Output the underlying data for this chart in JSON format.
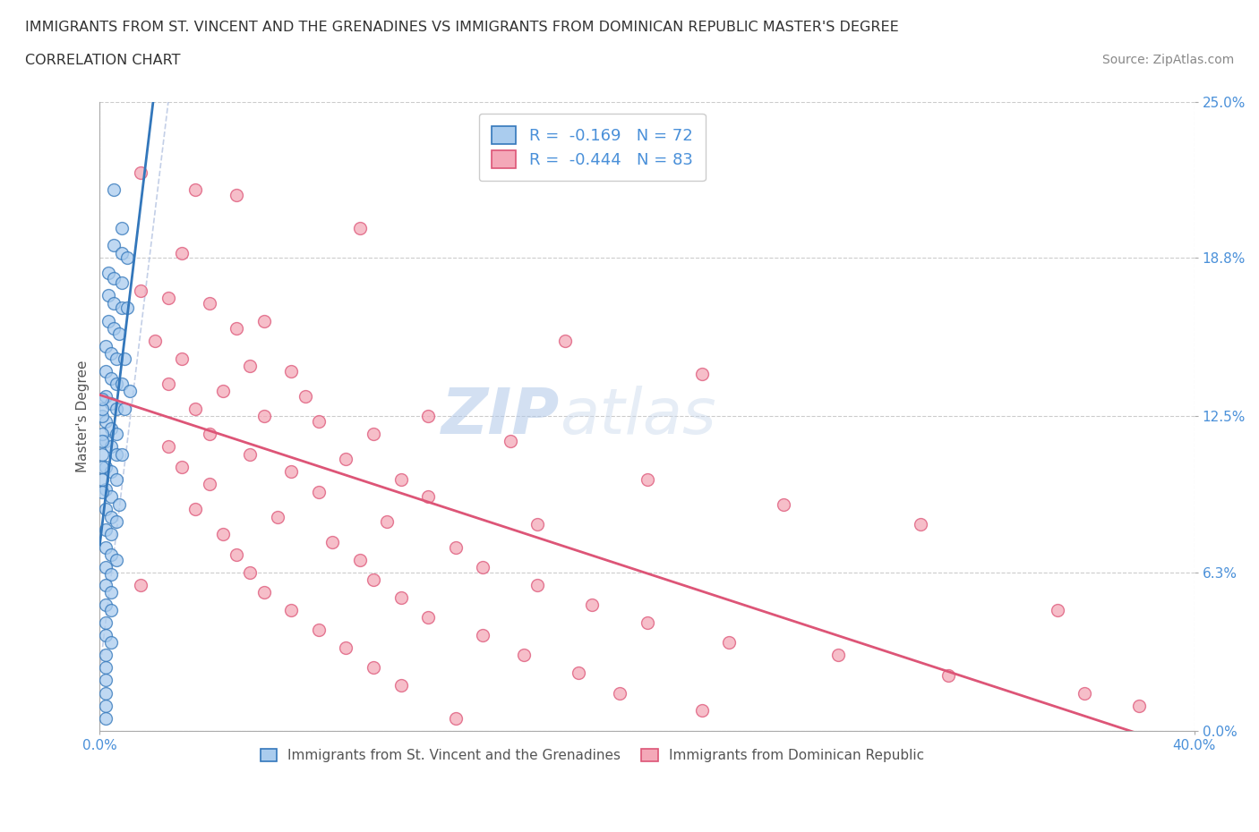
{
  "title_line1": "IMMIGRANTS FROM ST. VINCENT AND THE GRENADINES VS IMMIGRANTS FROM DOMINICAN REPUBLIC MASTER'S DEGREE",
  "title_line2": "CORRELATION CHART",
  "source_text": "Source: ZipAtlas.com",
  "ylabel": "Master's Degree",
  "xlim": [
    0.0,
    0.4
  ],
  "ylim": [
    0.0,
    0.25
  ],
  "xtick_positions": [
    0.0,
    0.4
  ],
  "xticklabels": [
    "0.0%",
    "40.0%"
  ],
  "ytick_values": [
    0.0,
    0.063,
    0.125,
    0.188,
    0.25
  ],
  "ytick_labels": [
    "0.0%",
    "6.3%",
    "12.5%",
    "18.8%",
    "25.0%"
  ],
  "blue_R": -0.169,
  "blue_N": 72,
  "pink_R": -0.444,
  "pink_N": 83,
  "blue_color": "#aaccee",
  "pink_color": "#f4a8b8",
  "blue_line_color": "#3377bb",
  "pink_line_color": "#dd5577",
  "blue_scatter": [
    [
      0.005,
      0.215
    ],
    [
      0.008,
      0.2
    ],
    [
      0.005,
      0.193
    ],
    [
      0.008,
      0.19
    ],
    [
      0.01,
      0.188
    ],
    [
      0.003,
      0.182
    ],
    [
      0.005,
      0.18
    ],
    [
      0.008,
      0.178
    ],
    [
      0.003,
      0.173
    ],
    [
      0.005,
      0.17
    ],
    [
      0.008,
      0.168
    ],
    [
      0.01,
      0.168
    ],
    [
      0.003,
      0.163
    ],
    [
      0.005,
      0.16
    ],
    [
      0.007,
      0.158
    ],
    [
      0.002,
      0.153
    ],
    [
      0.004,
      0.15
    ],
    [
      0.006,
      0.148
    ],
    [
      0.009,
      0.148
    ],
    [
      0.002,
      0.143
    ],
    [
      0.004,
      0.14
    ],
    [
      0.006,
      0.138
    ],
    [
      0.008,
      0.138
    ],
    [
      0.011,
      0.135
    ],
    [
      0.002,
      0.133
    ],
    [
      0.004,
      0.13
    ],
    [
      0.006,
      0.128
    ],
    [
      0.009,
      0.128
    ],
    [
      0.002,
      0.123
    ],
    [
      0.004,
      0.12
    ],
    [
      0.006,
      0.118
    ],
    [
      0.002,
      0.115
    ],
    [
      0.004,
      0.113
    ],
    [
      0.006,
      0.11
    ],
    [
      0.008,
      0.11
    ],
    [
      0.002,
      0.105
    ],
    [
      0.004,
      0.103
    ],
    [
      0.006,
      0.1
    ],
    [
      0.002,
      0.096
    ],
    [
      0.004,
      0.093
    ],
    [
      0.007,
      0.09
    ],
    [
      0.002,
      0.088
    ],
    [
      0.004,
      0.085
    ],
    [
      0.006,
      0.083
    ],
    [
      0.002,
      0.08
    ],
    [
      0.004,
      0.078
    ],
    [
      0.002,
      0.073
    ],
    [
      0.004,
      0.07
    ],
    [
      0.006,
      0.068
    ],
    [
      0.002,
      0.065
    ],
    [
      0.004,
      0.062
    ],
    [
      0.002,
      0.058
    ],
    [
      0.004,
      0.055
    ],
    [
      0.002,
      0.05
    ],
    [
      0.004,
      0.048
    ],
    [
      0.002,
      0.043
    ],
    [
      0.002,
      0.038
    ],
    [
      0.004,
      0.035
    ],
    [
      0.002,
      0.03
    ],
    [
      0.002,
      0.025
    ],
    [
      0.002,
      0.02
    ],
    [
      0.002,
      0.015
    ],
    [
      0.002,
      0.01
    ],
    [
      0.002,
      0.005
    ],
    [
      0.001,
      0.125
    ],
    [
      0.001,
      0.128
    ],
    [
      0.001,
      0.132
    ],
    [
      0.001,
      0.118
    ],
    [
      0.001,
      0.115
    ],
    [
      0.001,
      0.11
    ],
    [
      0.001,
      0.105
    ],
    [
      0.001,
      0.1
    ],
    [
      0.001,
      0.095
    ]
  ],
  "pink_scatter": [
    [
      0.015,
      0.222
    ],
    [
      0.035,
      0.215
    ],
    [
      0.05,
      0.213
    ],
    [
      0.095,
      0.2
    ],
    [
      0.03,
      0.19
    ],
    [
      0.015,
      0.175
    ],
    [
      0.025,
      0.172
    ],
    [
      0.04,
      0.17
    ],
    [
      0.06,
      0.163
    ],
    [
      0.05,
      0.16
    ],
    [
      0.02,
      0.155
    ],
    [
      0.03,
      0.148
    ],
    [
      0.055,
      0.145
    ],
    [
      0.07,
      0.143
    ],
    [
      0.025,
      0.138
    ],
    [
      0.045,
      0.135
    ],
    [
      0.075,
      0.133
    ],
    [
      0.035,
      0.128
    ],
    [
      0.06,
      0.125
    ],
    [
      0.08,
      0.123
    ],
    [
      0.1,
      0.118
    ],
    [
      0.04,
      0.118
    ],
    [
      0.15,
      0.115
    ],
    [
      0.025,
      0.113
    ],
    [
      0.055,
      0.11
    ],
    [
      0.09,
      0.108
    ],
    [
      0.03,
      0.105
    ],
    [
      0.07,
      0.103
    ],
    [
      0.11,
      0.1
    ],
    [
      0.2,
      0.1
    ],
    [
      0.04,
      0.098
    ],
    [
      0.08,
      0.095
    ],
    [
      0.12,
      0.093
    ],
    [
      0.25,
      0.09
    ],
    [
      0.035,
      0.088
    ],
    [
      0.065,
      0.085
    ],
    [
      0.105,
      0.083
    ],
    [
      0.16,
      0.082
    ],
    [
      0.3,
      0.082
    ],
    [
      0.045,
      0.078
    ],
    [
      0.085,
      0.075
    ],
    [
      0.13,
      0.073
    ],
    [
      0.05,
      0.07
    ],
    [
      0.095,
      0.068
    ],
    [
      0.14,
      0.065
    ],
    [
      0.055,
      0.063
    ],
    [
      0.1,
      0.06
    ],
    [
      0.16,
      0.058
    ],
    [
      0.06,
      0.055
    ],
    [
      0.11,
      0.053
    ],
    [
      0.18,
      0.05
    ],
    [
      0.35,
      0.048
    ],
    [
      0.07,
      0.048
    ],
    [
      0.12,
      0.045
    ],
    [
      0.2,
      0.043
    ],
    [
      0.08,
      0.04
    ],
    [
      0.14,
      0.038
    ],
    [
      0.23,
      0.035
    ],
    [
      0.09,
      0.033
    ],
    [
      0.155,
      0.03
    ],
    [
      0.27,
      0.03
    ],
    [
      0.1,
      0.025
    ],
    [
      0.175,
      0.023
    ],
    [
      0.31,
      0.022
    ],
    [
      0.11,
      0.018
    ],
    [
      0.19,
      0.015
    ],
    [
      0.36,
      0.015
    ],
    [
      0.38,
      0.01
    ],
    [
      0.22,
      0.008
    ],
    [
      0.13,
      0.005
    ],
    [
      0.17,
      0.155
    ],
    [
      0.22,
      0.142
    ],
    [
      0.015,
      0.058
    ],
    [
      0.12,
      0.125
    ]
  ]
}
